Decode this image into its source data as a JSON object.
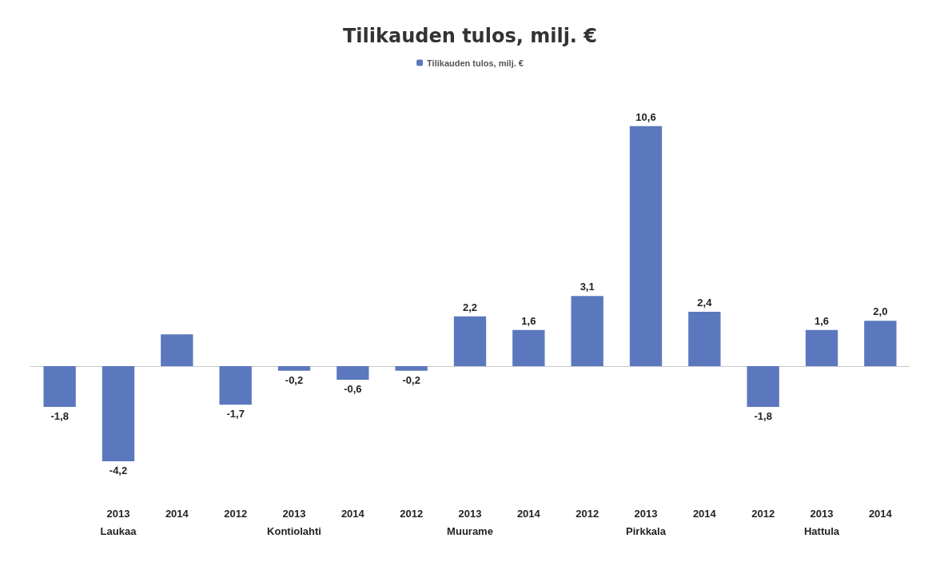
{
  "chart_data": {
    "type": "bar",
    "title": "Tilikauden tulos, milj. €",
    "categories": [
      null,
      "2013",
      "2014",
      "2012",
      "2013",
      "2014",
      "2012",
      "2013",
      "2014",
      "2012",
      "2013",
      "2014",
      "2012",
      "2013",
      "2014"
    ],
    "series": [
      {
        "name": "Tilikauden tulos, milj. €",
        "color": "#5b78be",
        "values": [
          -1.8,
          -4.2,
          1.4,
          -1.7,
          -0.2,
          -0.6,
          -0.2,
          2.2,
          1.6,
          3.1,
          10.6,
          2.4,
          -1.8,
          1.6,
          2.0
        ],
        "value_labels": [
          "-1,8",
          "-4,2",
          null,
          "-1,7",
          "-0,2",
          "-0,6",
          "-0,2",
          "2,2",
          "1,6",
          "3,1",
          "10,6",
          "2,4",
          "-1,8",
          "1,6",
          "2,0"
        ]
      }
    ],
    "annotations": [
      "Laukaa",
      "Kontiolahti",
      "Muurame",
      "Pirkkala",
      "Hattula"
    ],
    "legend": "top"
  }
}
